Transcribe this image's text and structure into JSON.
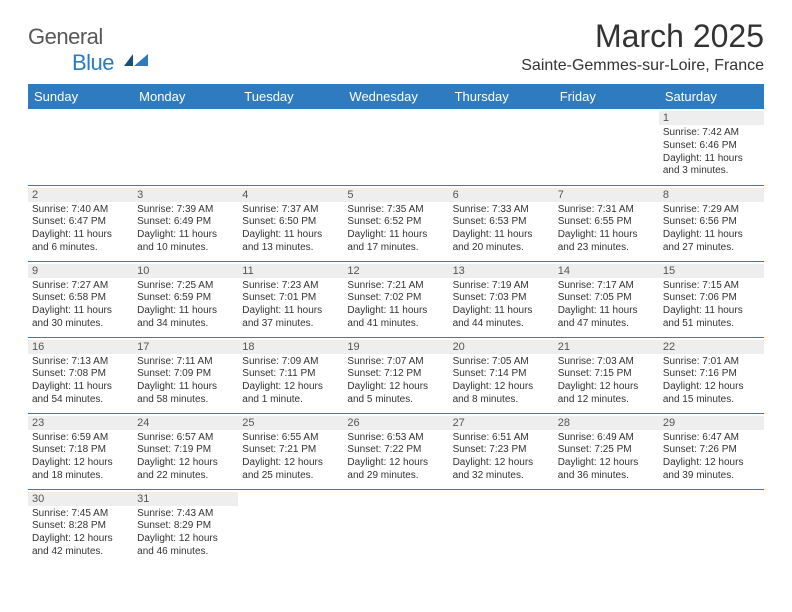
{
  "brand": {
    "name_g": "General",
    "name_b": "Blue"
  },
  "title": "March 2025",
  "location": "Sainte-Gemmes-sur-Loire, France",
  "headers": [
    "Sunday",
    "Monday",
    "Tuesday",
    "Wednesday",
    "Thursday",
    "Friday",
    "Saturday"
  ],
  "colors": {
    "header_bg": "#2f7bbf",
    "header_text": "#ffffff",
    "daybar_bg": "#eeeeee",
    "border": "#2f7bbf",
    "text": "#333333",
    "logo_gray": "#585858",
    "logo_blue": "#2a7bbf",
    "background": "#ffffff"
  },
  "firstDayOffset": 6,
  "days": [
    {
      "n": "1",
      "sr": "Sunrise: 7:42 AM",
      "ss": "Sunset: 6:46 PM",
      "dl1": "Daylight: 11 hours",
      "dl2": "and 3 minutes."
    },
    {
      "n": "2",
      "sr": "Sunrise: 7:40 AM",
      "ss": "Sunset: 6:47 PM",
      "dl1": "Daylight: 11 hours",
      "dl2": "and 6 minutes."
    },
    {
      "n": "3",
      "sr": "Sunrise: 7:39 AM",
      "ss": "Sunset: 6:49 PM",
      "dl1": "Daylight: 11 hours",
      "dl2": "and 10 minutes."
    },
    {
      "n": "4",
      "sr": "Sunrise: 7:37 AM",
      "ss": "Sunset: 6:50 PM",
      "dl1": "Daylight: 11 hours",
      "dl2": "and 13 minutes."
    },
    {
      "n": "5",
      "sr": "Sunrise: 7:35 AM",
      "ss": "Sunset: 6:52 PM",
      "dl1": "Daylight: 11 hours",
      "dl2": "and 17 minutes."
    },
    {
      "n": "6",
      "sr": "Sunrise: 7:33 AM",
      "ss": "Sunset: 6:53 PM",
      "dl1": "Daylight: 11 hours",
      "dl2": "and 20 minutes."
    },
    {
      "n": "7",
      "sr": "Sunrise: 7:31 AM",
      "ss": "Sunset: 6:55 PM",
      "dl1": "Daylight: 11 hours",
      "dl2": "and 23 minutes."
    },
    {
      "n": "8",
      "sr": "Sunrise: 7:29 AM",
      "ss": "Sunset: 6:56 PM",
      "dl1": "Daylight: 11 hours",
      "dl2": "and 27 minutes."
    },
    {
      "n": "9",
      "sr": "Sunrise: 7:27 AM",
      "ss": "Sunset: 6:58 PM",
      "dl1": "Daylight: 11 hours",
      "dl2": "and 30 minutes."
    },
    {
      "n": "10",
      "sr": "Sunrise: 7:25 AM",
      "ss": "Sunset: 6:59 PM",
      "dl1": "Daylight: 11 hours",
      "dl2": "and 34 minutes."
    },
    {
      "n": "11",
      "sr": "Sunrise: 7:23 AM",
      "ss": "Sunset: 7:01 PM",
      "dl1": "Daylight: 11 hours",
      "dl2": "and 37 minutes."
    },
    {
      "n": "12",
      "sr": "Sunrise: 7:21 AM",
      "ss": "Sunset: 7:02 PM",
      "dl1": "Daylight: 11 hours",
      "dl2": "and 41 minutes."
    },
    {
      "n": "13",
      "sr": "Sunrise: 7:19 AM",
      "ss": "Sunset: 7:03 PM",
      "dl1": "Daylight: 11 hours",
      "dl2": "and 44 minutes."
    },
    {
      "n": "14",
      "sr": "Sunrise: 7:17 AM",
      "ss": "Sunset: 7:05 PM",
      "dl1": "Daylight: 11 hours",
      "dl2": "and 47 minutes."
    },
    {
      "n": "15",
      "sr": "Sunrise: 7:15 AM",
      "ss": "Sunset: 7:06 PM",
      "dl1": "Daylight: 11 hours",
      "dl2": "and 51 minutes."
    },
    {
      "n": "16",
      "sr": "Sunrise: 7:13 AM",
      "ss": "Sunset: 7:08 PM",
      "dl1": "Daylight: 11 hours",
      "dl2": "and 54 minutes."
    },
    {
      "n": "17",
      "sr": "Sunrise: 7:11 AM",
      "ss": "Sunset: 7:09 PM",
      "dl1": "Daylight: 11 hours",
      "dl2": "and 58 minutes."
    },
    {
      "n": "18",
      "sr": "Sunrise: 7:09 AM",
      "ss": "Sunset: 7:11 PM",
      "dl1": "Daylight: 12 hours",
      "dl2": "and 1 minute."
    },
    {
      "n": "19",
      "sr": "Sunrise: 7:07 AM",
      "ss": "Sunset: 7:12 PM",
      "dl1": "Daylight: 12 hours",
      "dl2": "and 5 minutes."
    },
    {
      "n": "20",
      "sr": "Sunrise: 7:05 AM",
      "ss": "Sunset: 7:14 PM",
      "dl1": "Daylight: 12 hours",
      "dl2": "and 8 minutes."
    },
    {
      "n": "21",
      "sr": "Sunrise: 7:03 AM",
      "ss": "Sunset: 7:15 PM",
      "dl1": "Daylight: 12 hours",
      "dl2": "and 12 minutes."
    },
    {
      "n": "22",
      "sr": "Sunrise: 7:01 AM",
      "ss": "Sunset: 7:16 PM",
      "dl1": "Daylight: 12 hours",
      "dl2": "and 15 minutes."
    },
    {
      "n": "23",
      "sr": "Sunrise: 6:59 AM",
      "ss": "Sunset: 7:18 PM",
      "dl1": "Daylight: 12 hours",
      "dl2": "and 18 minutes."
    },
    {
      "n": "24",
      "sr": "Sunrise: 6:57 AM",
      "ss": "Sunset: 7:19 PM",
      "dl1": "Daylight: 12 hours",
      "dl2": "and 22 minutes."
    },
    {
      "n": "25",
      "sr": "Sunrise: 6:55 AM",
      "ss": "Sunset: 7:21 PM",
      "dl1": "Daylight: 12 hours",
      "dl2": "and 25 minutes."
    },
    {
      "n": "26",
      "sr": "Sunrise: 6:53 AM",
      "ss": "Sunset: 7:22 PM",
      "dl1": "Daylight: 12 hours",
      "dl2": "and 29 minutes."
    },
    {
      "n": "27",
      "sr": "Sunrise: 6:51 AM",
      "ss": "Sunset: 7:23 PM",
      "dl1": "Daylight: 12 hours",
      "dl2": "and 32 minutes."
    },
    {
      "n": "28",
      "sr": "Sunrise: 6:49 AM",
      "ss": "Sunset: 7:25 PM",
      "dl1": "Daylight: 12 hours",
      "dl2": "and 36 minutes."
    },
    {
      "n": "29",
      "sr": "Sunrise: 6:47 AM",
      "ss": "Sunset: 7:26 PM",
      "dl1": "Daylight: 12 hours",
      "dl2": "and 39 minutes."
    },
    {
      "n": "30",
      "sr": "Sunrise: 7:45 AM",
      "ss": "Sunset: 8:28 PM",
      "dl1": "Daylight: 12 hours",
      "dl2": "and 42 minutes."
    },
    {
      "n": "31",
      "sr": "Sunrise: 7:43 AM",
      "ss": "Sunset: 8:29 PM",
      "dl1": "Daylight: 12 hours",
      "dl2": "and 46 minutes."
    }
  ]
}
